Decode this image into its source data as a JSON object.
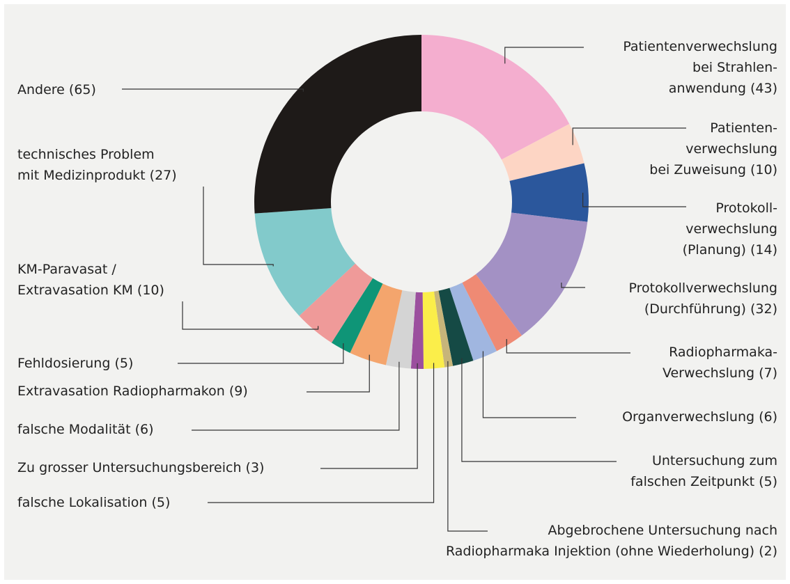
{
  "chart_data": {
    "type": "donut",
    "categories": [
      "Patientenverwechslung\nbei Strahlen-\nanwendung (43)",
      "Patienten-\nverwechslung\nbei Zuweisung (10)",
      "Protokoll-\nverwechslung\n(Planung) (14)",
      "Protokollverwechslung\n(Durchführung) (32)",
      "Radiopharmaka-\nVerwechslung (7)",
      "Organverwechslung (6)",
      "Untersuchung zum\nfalschen Zeitpunkt (5)",
      "Abgebrochene Untersuchung nach\nRadiopharmaka Injektion (ohne Wiederholung) (2)",
      "falsche Lokalisation (5)",
      "Zu grosser Untersuchungsbereich (3)",
      "falsche Modalität (6)",
      "Extravasation Radiopharmakon (9)",
      "Fehldosierung (5)",
      "KM-Paravasat /\nExtravasation KM (10)",
      "technisches Problem\nmit Medizinprodukt (27)",
      "Andere (65)"
    ],
    "values": [
      43,
      10,
      14,
      32,
      7,
      6,
      5,
      2,
      5,
      3,
      6,
      9,
      5,
      10,
      27,
      65
    ],
    "colors": [
      "#f4aecf",
      "#fdd5c4",
      "#2b579c",
      "#a391c4",
      "#ef8a74",
      "#a0b6e0",
      "#154a45",
      "#c7b57a",
      "#fbee4a",
      "#9b4f9e",
      "#d4d4d4",
      "#f4a56d",
      "#0f9577",
      "#ef9a99",
      "#82cacb",
      "#1e1a18"
    ]
  }
}
